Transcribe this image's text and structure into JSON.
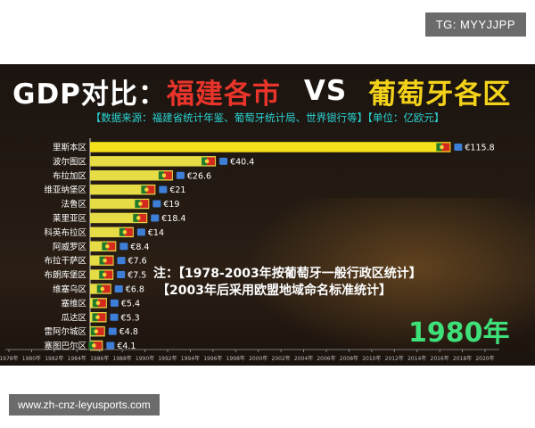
{
  "watermarks": {
    "channel": "TG: MYYJJPP",
    "site": "www.zh-cnz-leyusports.com"
  },
  "header": {
    "title_prefix": "GDP对比：",
    "title_region_a": "福建各市",
    "title_vs": "VS",
    "title_region_b": "葡萄牙各区",
    "subtitle": "【数据来源：福建省统计年鉴、葡萄牙统计局、世界银行等】【单位：亿欧元】"
  },
  "note_lines": [
    "注：【1978-2003年按葡萄牙一般行政区统计】",
    "【2003年后采用欧盟地域命名标准统计】"
  ],
  "current_year": "1980年",
  "colors": {
    "bar_main": "#f4e11c",
    "bar_other": "#e6dc45",
    "title_white": "#ffffff",
    "title_red": "#e8342a",
    "title_yellow": "#f4d21a",
    "subtitle_cyan": "#2ad3d3",
    "year_green": "#3ee07a"
  },
  "chart_data": {
    "type": "bar",
    "orientation": "horizontal",
    "unit": "亿欧元",
    "categories": [
      "里斯本区",
      "波尔图区",
      "布拉加区",
      "维亚纳堡区",
      "法鲁区",
      "莱里亚区",
      "科英布拉区",
      "阿威罗区",
      "布拉干萨区",
      "布朗库堡区",
      "维塞乌区",
      "塞维区",
      "瓜达区",
      "雷阿尔城区",
      "塞图巴尔区"
    ],
    "values": [
      115.8,
      40.4,
      26.6,
      21,
      19,
      18.4,
      14,
      8.4,
      7.6,
      7.5,
      6.8,
      5.4,
      5.3,
      4.8,
      4.1
    ],
    "value_labels": [
      "€115.8",
      "€40.4",
      "€26.6",
      "€21",
      "€19",
      "€18.4",
      "€14",
      "€8.4",
      "€7.6",
      "€7.5",
      "€6.8",
      "€5.4",
      "€5.3",
      "€4.8",
      "€4.1"
    ],
    "x_ticks": [
      "1978年",
      "1980年",
      "1982年",
      "1984年",
      "1986年",
      "1988年",
      "1990年",
      "1992年",
      "1994年",
      "1996年",
      "1998年",
      "2000年",
      "2002年",
      "2004年",
      "2006年",
      "2008年",
      "2010年",
      "2012年",
      "2014年",
      "2016年",
      "2018年",
      "2020年"
    ],
    "xlim": [
      0,
      128
    ]
  }
}
